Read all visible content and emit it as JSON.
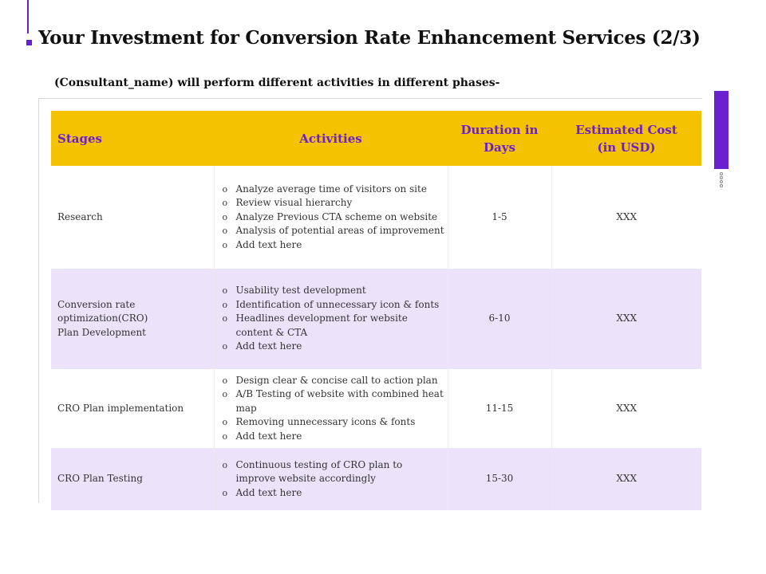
{
  "slide": {
    "title": "Your Investment for Conversion Rate Enhancement Services (2/3)",
    "subtitle": "(Consultant_name) will perform different activities in different phases-"
  },
  "table": {
    "headers": {
      "stages": "Stages",
      "activities": "Activities",
      "duration_line1": "Duration in",
      "duration_line2": "Days",
      "cost_line1": "Estimated Cost",
      "cost_line2": "(in USD)"
    },
    "rows": [
      {
        "stage_lines": [
          "Research"
        ],
        "activities": [
          "Analyze average time of visitors on site",
          "Review visual hierarchy",
          "Analyze Previous CTA scheme on website",
          "Analysis of potential areas of improvement",
          "Add text here"
        ],
        "duration": "1-5",
        "cost": "XXX"
      },
      {
        "stage_lines": [
          "Conversion rate",
          "optimization(CRO)",
          "Plan Development"
        ],
        "activities": [
          "Usability test development",
          "Identification of unnecessary icon & fonts",
          "Headlines development for website content & CTA",
          "Add text here"
        ],
        "duration": "6-10",
        "cost": "XXX"
      },
      {
        "stage_lines": [
          "CRO Plan implementation"
        ],
        "activities": [
          "Design clear & concise call to action plan",
          "A/B Testing of website with combined heat map",
          "Removing unnecessary icons & fonts",
          "Add text here"
        ],
        "duration": "11-15",
        "cost": "XXX"
      },
      {
        "stage_lines": [
          "CRO Plan Testing"
        ],
        "activities": [
          "Continuous testing of CRO plan to improve website accordingly",
          "Add text here"
        ],
        "duration": "15-30",
        "cost": "XXX"
      }
    ]
  },
  "colors": {
    "accent": "#6a1fd0",
    "header_bg": "#f5c200",
    "row_alt_bg": "#ece3fb"
  }
}
